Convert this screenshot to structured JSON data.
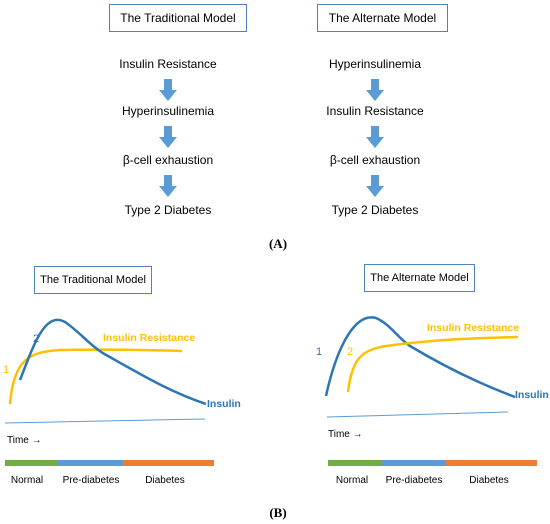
{
  "panel_a": {
    "traditional": {
      "title": "The Traditional Model",
      "steps": [
        "Insulin Resistance",
        "Hyperinsulinemia",
        "β-cell exhaustion",
        "Type 2 Diabetes"
      ]
    },
    "alternate": {
      "title": "The Alternate Model",
      "steps": [
        "Hyperinsulinemia",
        "Insulin Resistance",
        "β-cell exhaustion",
        "Type 2 Diabetes"
      ]
    },
    "caption": "(A)"
  },
  "panel_b": {
    "traditional": {
      "title": "The Traditional Model",
      "insulin_resistance_label": "Insulin Resistance",
      "insulin_label": "Insulin",
      "marker_1": "1",
      "marker_2": "2",
      "time_label": "Time →",
      "stages": [
        "Normal",
        "Pre-diabetes",
        "Diabetes"
      ]
    },
    "alternate": {
      "title": "The Alternate Model",
      "insulin_resistance_label": "Insulin Resistance",
      "insulin_label": "Insulin",
      "marker_1": "1",
      "marker_2": "2",
      "time_label": "Time →",
      "stages": [
        "Normal",
        "Pre-diabetes",
        "Diabetes"
      ]
    },
    "caption": "(B)"
  },
  "colors": {
    "box_border": "#4f81bd",
    "arrow_fill": "#5b9bd5",
    "insulin_curve": "#2e75b6",
    "resistance_curve": "#ffc000",
    "time_line": "#5b9bd5",
    "stage_normal": "#70ad47",
    "stage_prediabetes": "#5b9bd5",
    "stage_diabetes": "#ed7d31"
  }
}
